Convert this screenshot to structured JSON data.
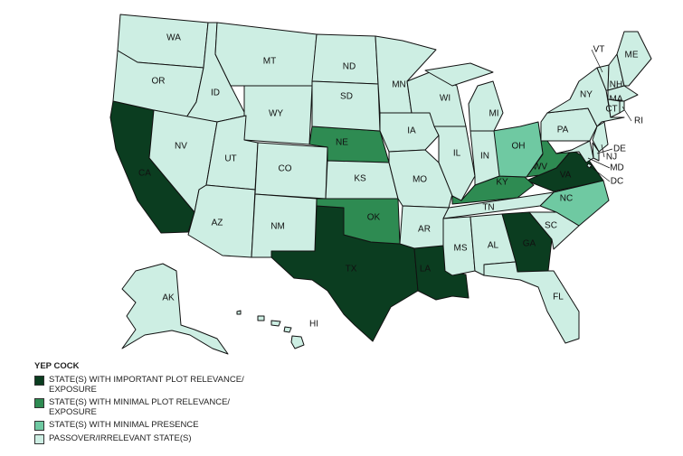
{
  "legend": {
    "title": "YEP COCK",
    "items": [
      {
        "label": "STATE(S) WITH IMPORTANT PLOT RELEVANCE/ EXPOSURE",
        "color": "#0b3d20",
        "states": [
          "CA",
          "TX",
          "LA",
          "GA",
          "VA"
        ]
      },
      {
        "label": "STATE(S) WITH MINIMAL PLOT RELEVANCE/ EXPOSURE",
        "color": "#2e8b52",
        "states": [
          "NE",
          "OK",
          "KY",
          "WV"
        ]
      },
      {
        "label": "STATE(S) WITH MINIMAL PRESENCE",
        "color": "#6fc9a2",
        "states": [
          "OH",
          "NC"
        ]
      },
      {
        "label": "PASSOVER/IRRELEVANT STATE(S)",
        "color": "#cdeee3",
        "states": [
          "WA",
          "OR",
          "ID",
          "NV",
          "MT",
          "WY",
          "UT",
          "AZ",
          "CO",
          "NM",
          "ND",
          "SD",
          "KS",
          "MN",
          "IA",
          "MO",
          "AR",
          "WI",
          "IL",
          "MI",
          "IN",
          "TN",
          "MS",
          "AL",
          "FL",
          "SC",
          "PA",
          "NY",
          "VT",
          "NH",
          "ME",
          "MA",
          "CT",
          "RI",
          "NJ",
          "DE",
          "MD",
          "DC",
          "AK",
          "HI"
        ]
      }
    ]
  }
}
